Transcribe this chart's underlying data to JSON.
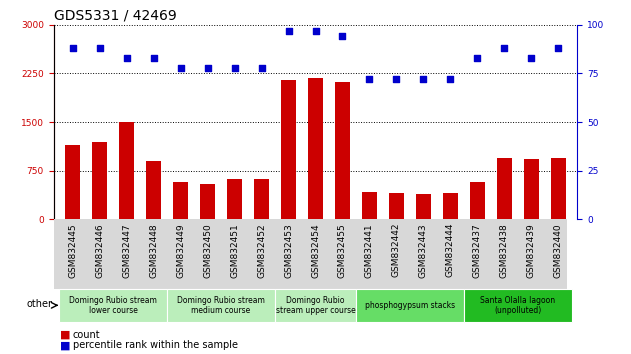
{
  "title": "GDS5331 / 42469",
  "samples": [
    "GSM832445",
    "GSM832446",
    "GSM832447",
    "GSM832448",
    "GSM832449",
    "GSM832450",
    "GSM832451",
    "GSM832452",
    "GSM832453",
    "GSM832454",
    "GSM832455",
    "GSM832441",
    "GSM832442",
    "GSM832443",
    "GSM832444",
    "GSM832437",
    "GSM832438",
    "GSM832439",
    "GSM832440"
  ],
  "counts": [
    1150,
    1200,
    1500,
    900,
    580,
    550,
    620,
    620,
    2150,
    2180,
    2120,
    430,
    410,
    390,
    410,
    580,
    950,
    930,
    950
  ],
  "percentiles": [
    88,
    88,
    83,
    83,
    78,
    78,
    78,
    78,
    97,
    97,
    94,
    72,
    72,
    72,
    72,
    83,
    88,
    83,
    88
  ],
  "bar_color": "#cc0000",
  "dot_color": "#0000cc",
  "ylim_left": [
    0,
    3000
  ],
  "ylim_right": [
    0,
    100
  ],
  "yticks_left": [
    0,
    750,
    1500,
    2250,
    3000
  ],
  "yticks_right": [
    0,
    25,
    50,
    75,
    100
  ],
  "groups": [
    {
      "label": "Domingo Rubio stream\nlower course",
      "start": 0,
      "end": 3
    },
    {
      "label": "Domingo Rubio stream\nmedium course",
      "start": 4,
      "end": 7
    },
    {
      "label": "Domingo Rubio\nstream upper course",
      "start": 8,
      "end": 10
    },
    {
      "label": "phosphogypsum stacks",
      "start": 11,
      "end": 14
    },
    {
      "label": "Santa Olalla lagoon\n(unpolluted)",
      "start": 15,
      "end": 18
    }
  ],
  "grp_colors": [
    "#bbeebb",
    "#bbeebb",
    "#bbeebb",
    "#66dd66",
    "#22bb22"
  ],
  "other_label": "other",
  "legend_count_label": "count",
  "legend_pct_label": "percentile rank within the sample",
  "title_fontsize": 10,
  "tick_fontsize": 6.5,
  "label_fontsize": 6.5,
  "ax_left_color": "#cc0000",
  "ax_right_color": "#0000cc",
  "xtick_bg_color": "#d8d8d8"
}
